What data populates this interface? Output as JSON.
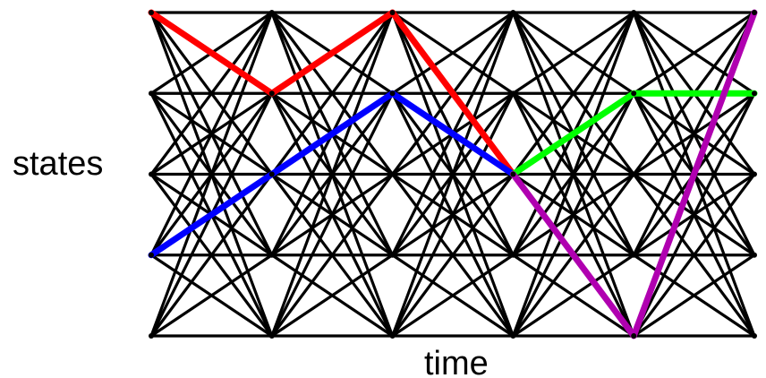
{
  "labels": {
    "y_axis": "states",
    "x_axis": "time"
  },
  "trellis": {
    "time_steps": 6,
    "states": 5,
    "edge_color": "#000000"
  },
  "paths": [
    {
      "id": "red",
      "color": "#ff0000",
      "nodes": [
        [
          0,
          0
        ],
        [
          1,
          1
        ],
        [
          2,
          0
        ],
        [
          3,
          2
        ]
      ]
    },
    {
      "id": "blue",
      "color": "#0000ff",
      "nodes": [
        [
          0,
          3
        ],
        [
          1,
          2
        ],
        [
          2,
          1
        ],
        [
          3,
          2
        ]
      ]
    },
    {
      "id": "green",
      "color": "#00ff00",
      "nodes": [
        [
          3,
          2
        ],
        [
          4,
          1
        ],
        [
          5,
          1
        ]
      ]
    },
    {
      "id": "purple",
      "color": "#b000b0",
      "nodes": [
        [
          3,
          2
        ],
        [
          4,
          4
        ],
        [
          5,
          0
        ]
      ]
    }
  ]
}
